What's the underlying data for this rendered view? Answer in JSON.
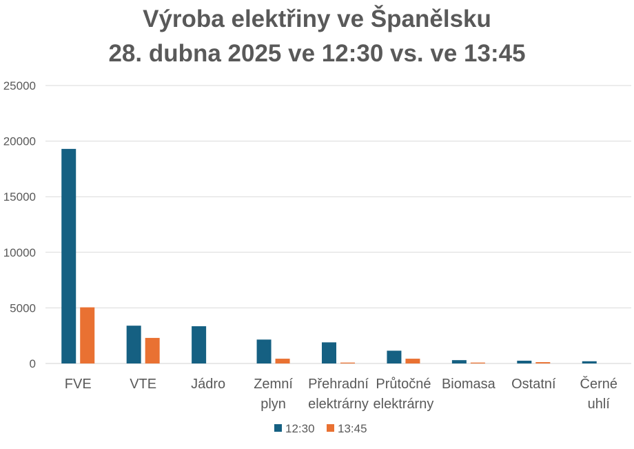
{
  "chart_data": {
    "type": "bar",
    "title": [
      "Výroba elektřiny ve Španělsku",
      "28. dubna 2025 ve 12:30 vs. ve 13:45"
    ],
    "categories": [
      [
        "FVE"
      ],
      [
        "VTE"
      ],
      [
        "Jádro"
      ],
      [
        "Zemní",
        "plyn"
      ],
      [
        "Přehradní",
        "elektrárny"
      ],
      [
        "Průtočné",
        "elektrárny"
      ],
      [
        "Biomasa"
      ],
      [
        "Ostatní"
      ],
      [
        "Černé",
        "uhlí"
      ]
    ],
    "series": [
      {
        "name": "12:30",
        "color": "#156082",
        "values": [
          19300,
          3400,
          3350,
          2150,
          1900,
          1150,
          300,
          250,
          200
        ]
      },
      {
        "name": "13:45",
        "color": "#E97132",
        "values": [
          5050,
          2300,
          0,
          430,
          80,
          430,
          80,
          120,
          0
        ]
      }
    ],
    "yticks": [
      0,
      5000,
      10000,
      15000,
      20000,
      25000
    ],
    "ylim": [
      0,
      25000
    ],
    "grid": true,
    "legend": "bottom"
  }
}
